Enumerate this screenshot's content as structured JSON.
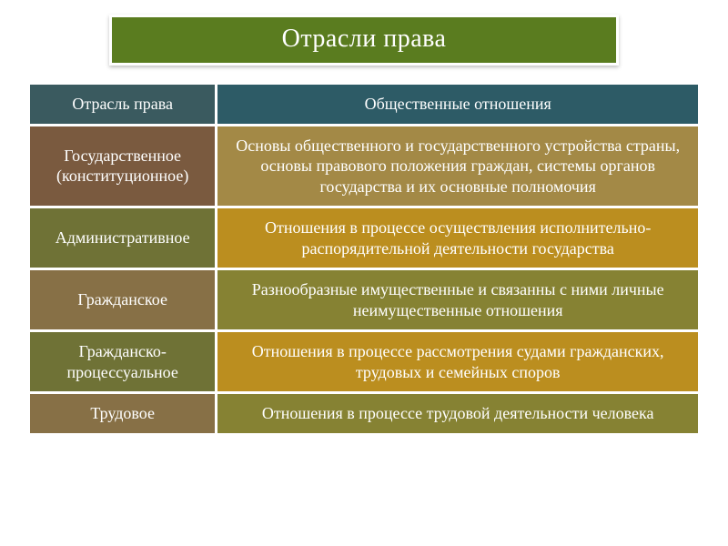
{
  "title": "Отрасли права",
  "header": {
    "left": "Отрасль права",
    "right": "Общественные отношения",
    "left_bg": "#3a5a5f",
    "right_bg": "#2d5b66"
  },
  "rows": [
    {
      "branch": "Государственное (конституционное)",
      "relations": "Основы общественного и государственного устройства страны, основы правового положения граждан, системы органов государства и их основные полномочия",
      "left_bg": "#7a5a3f",
      "right_bg": "#a38946"
    },
    {
      "branch": "Административное",
      "relations": "Отношения в процессе осуществления исполнительно-распорядительной деятельности государства",
      "left_bg": "#6f7236",
      "right_bg": "#bb8e1f"
    },
    {
      "branch": "Гражданское",
      "relations": "Разнообразные имущественные и связанны с ними личные неимущественные отношения",
      "left_bg": "#877046",
      "right_bg": "#868233"
    },
    {
      "branch": "Гражданско-процессуальное",
      "relations": "Отношения в процессе рассмотрения судами гражданских, трудовых и семейных споров",
      "left_bg": "#6f7236",
      "right_bg": "#bb8e1f"
    },
    {
      "branch": "Трудовое",
      "relations": "Отношения в процессе трудовой деятельности человека",
      "left_bg": "#877046",
      "right_bg": "#868233"
    }
  ],
  "colors": {
    "title_bg": "#5a7c1f",
    "border": "#ffffff",
    "text": "#ffffff"
  }
}
